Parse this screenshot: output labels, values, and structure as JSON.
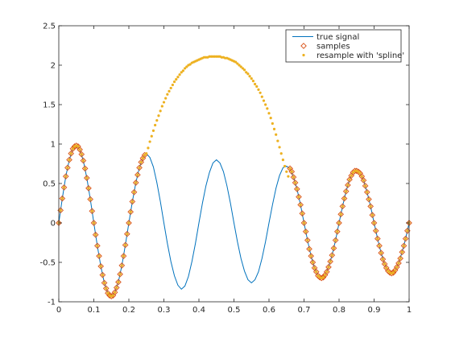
{
  "chart_data": {
    "type": "line",
    "title": "",
    "xlabel": "",
    "ylabel": "",
    "xlim": [
      0,
      1
    ],
    "ylim": [
      -1,
      2.5
    ],
    "grid": false,
    "legend_position": "top-right",
    "x_ticks": [
      "0",
      "0.1",
      "0.2",
      "0.3",
      "0.4",
      "0.5",
      "0.6",
      "0.7",
      "0.8",
      "0.9",
      "1"
    ],
    "y_ticks": [
      "-1",
      "-0.5",
      "0",
      "0.5",
      "1",
      "1.5",
      "2",
      "2.5"
    ],
    "series": [
      {
        "name": "true signal",
        "style": "line",
        "color": "#0072bd",
        "x": [
          0.0,
          0.01,
          0.02,
          0.03,
          0.04,
          0.05,
          0.06,
          0.07,
          0.08,
          0.09,
          0.1,
          0.11,
          0.12,
          0.13,
          0.14,
          0.15,
          0.16,
          0.17,
          0.18,
          0.19,
          0.2,
          0.21,
          0.22,
          0.23,
          0.24,
          0.25,
          0.26,
          0.27,
          0.28,
          0.29,
          0.3,
          0.31,
          0.32,
          0.33,
          0.34,
          0.35,
          0.36,
          0.37,
          0.38,
          0.39,
          0.4,
          0.41,
          0.42,
          0.43,
          0.44,
          0.45,
          0.46,
          0.47,
          0.48,
          0.49,
          0.5,
          0.51,
          0.52,
          0.53,
          0.54,
          0.55,
          0.56,
          0.57,
          0.58,
          0.59,
          0.6,
          0.61,
          0.62,
          0.63,
          0.64,
          0.65,
          0.66,
          0.67,
          0.68,
          0.69,
          0.7,
          0.71,
          0.72,
          0.73,
          0.74,
          0.75,
          0.76,
          0.77,
          0.78,
          0.79,
          0.8,
          0.81,
          0.82,
          0.83,
          0.84,
          0.85,
          0.86,
          0.87,
          0.88,
          0.89,
          0.9,
          0.91,
          0.92,
          0.93,
          0.94,
          0.95,
          0.96,
          0.97,
          0.98,
          0.99,
          1.0
        ],
        "values": [
          0.0,
          0.31,
          0.59,
          0.8,
          0.94,
          0.98,
          0.93,
          0.79,
          0.57,
          0.3,
          0.0,
          -0.29,
          -0.55,
          -0.76,
          -0.89,
          -0.93,
          -0.88,
          -0.75,
          -0.54,
          -0.28,
          0.0,
          0.27,
          0.51,
          0.7,
          0.82,
          0.88,
          0.83,
          0.71,
          0.51,
          0.27,
          0.0,
          -0.26,
          -0.49,
          -0.67,
          -0.79,
          -0.84,
          -0.8,
          -0.68,
          -0.49,
          -0.26,
          0.0,
          0.25,
          0.47,
          0.64,
          0.76,
          0.8,
          0.76,
          0.65,
          0.47,
          0.25,
          0.0,
          -0.24,
          -0.45,
          -0.61,
          -0.72,
          -0.76,
          -0.72,
          -0.62,
          -0.45,
          -0.24,
          0.0,
          0.23,
          0.44,
          0.6,
          0.7,
          0.72,
          0.69,
          0.58,
          0.43,
          0.23,
          0.0,
          -0.22,
          -0.42,
          -0.57,
          -0.67,
          -0.7,
          -0.66,
          -0.56,
          -0.41,
          -0.22,
          0.0,
          0.21,
          0.4,
          0.55,
          0.64,
          0.66,
          0.63,
          0.54,
          0.39,
          0.21,
          0.0,
          -0.2,
          -0.38,
          -0.52,
          -0.61,
          -0.64,
          -0.6,
          -0.51,
          -0.37,
          -0.2,
          0.0
        ]
      },
      {
        "name": "samples",
        "style": "marker-diamond",
        "color": "#d95319",
        "x": [
          0.0,
          0.005,
          0.01,
          0.015,
          0.02,
          0.025,
          0.03,
          0.035,
          0.04,
          0.045,
          0.05,
          0.055,
          0.06,
          0.065,
          0.07,
          0.075,
          0.08,
          0.085,
          0.09,
          0.095,
          0.1,
          0.105,
          0.11,
          0.115,
          0.12,
          0.125,
          0.13,
          0.135,
          0.14,
          0.145,
          0.15,
          0.155,
          0.16,
          0.165,
          0.17,
          0.175,
          0.18,
          0.185,
          0.19,
          0.195,
          0.2,
          0.205,
          0.21,
          0.215,
          0.22,
          0.225,
          0.23,
          0.235,
          0.24,
          0.245,
          0.66,
          0.665,
          0.67,
          0.675,
          0.68,
          0.685,
          0.69,
          0.695,
          0.7,
          0.705,
          0.71,
          0.715,
          0.72,
          0.725,
          0.73,
          0.735,
          0.74,
          0.745,
          0.75,
          0.755,
          0.76,
          0.765,
          0.77,
          0.775,
          0.78,
          0.785,
          0.79,
          0.795,
          0.8,
          0.805,
          0.81,
          0.815,
          0.82,
          0.825,
          0.83,
          0.835,
          0.84,
          0.845,
          0.85,
          0.855,
          0.86,
          0.865,
          0.87,
          0.875,
          0.88,
          0.885,
          0.89,
          0.895,
          0.9,
          0.905,
          0.91,
          0.915,
          0.92,
          0.925,
          0.93,
          0.935,
          0.94,
          0.945,
          0.95,
          0.955,
          0.96,
          0.965,
          0.97,
          0.975,
          0.98,
          0.985,
          0.99,
          0.995,
          1.0
        ],
        "values": [
          0.0,
          0.16,
          0.31,
          0.45,
          0.59,
          0.7,
          0.8,
          0.88,
          0.94,
          0.97,
          0.98,
          0.97,
          0.93,
          0.87,
          0.79,
          0.69,
          0.57,
          0.44,
          0.3,
          0.15,
          0.0,
          -0.15,
          -0.29,
          -0.42,
          -0.55,
          -0.66,
          -0.76,
          -0.83,
          -0.89,
          -0.92,
          -0.93,
          -0.92,
          -0.88,
          -0.82,
          -0.75,
          -0.65,
          -0.54,
          -0.42,
          -0.28,
          -0.14,
          0.0,
          0.14,
          0.27,
          0.39,
          0.51,
          0.61,
          0.7,
          0.77,
          0.82,
          0.86,
          0.69,
          0.65,
          0.58,
          0.51,
          0.43,
          0.33,
          0.23,
          0.12,
          0.0,
          -0.11,
          -0.22,
          -0.33,
          -0.42,
          -0.5,
          -0.57,
          -0.62,
          -0.67,
          -0.69,
          -0.7,
          -0.69,
          -0.66,
          -0.62,
          -0.56,
          -0.49,
          -0.41,
          -0.32,
          -0.22,
          -0.11,
          0.0,
          0.11,
          0.21,
          0.31,
          0.4,
          0.48,
          0.55,
          0.6,
          0.64,
          0.66,
          0.66,
          0.65,
          0.63,
          0.59,
          0.54,
          0.47,
          0.39,
          0.3,
          0.21,
          0.1,
          0.0,
          -0.1,
          -0.2,
          -0.29,
          -0.38,
          -0.46,
          -0.52,
          -0.57,
          -0.61,
          -0.63,
          -0.64,
          -0.63,
          -0.6,
          -0.56,
          -0.51,
          -0.45,
          -0.37,
          -0.29,
          -0.2,
          -0.1,
          0.0
        ]
      },
      {
        "name": "resample with 'spline'",
        "style": "marker-dot",
        "color": "#edb120",
        "x": [
          0.0,
          0.005,
          0.01,
          0.015,
          0.02,
          0.025,
          0.03,
          0.035,
          0.04,
          0.045,
          0.05,
          0.055,
          0.06,
          0.065,
          0.07,
          0.075,
          0.08,
          0.085,
          0.09,
          0.095,
          0.1,
          0.105,
          0.11,
          0.115,
          0.12,
          0.125,
          0.13,
          0.135,
          0.14,
          0.145,
          0.15,
          0.155,
          0.16,
          0.165,
          0.17,
          0.175,
          0.18,
          0.185,
          0.19,
          0.195,
          0.2,
          0.205,
          0.21,
          0.215,
          0.22,
          0.225,
          0.23,
          0.235,
          0.24,
          0.245,
          0.25,
          0.255,
          0.26,
          0.265,
          0.27,
          0.275,
          0.28,
          0.285,
          0.29,
          0.295,
          0.3,
          0.305,
          0.31,
          0.315,
          0.32,
          0.325,
          0.33,
          0.335,
          0.34,
          0.345,
          0.35,
          0.355,
          0.36,
          0.365,
          0.37,
          0.375,
          0.38,
          0.385,
          0.39,
          0.395,
          0.4,
          0.405,
          0.41,
          0.415,
          0.42,
          0.425,
          0.43,
          0.435,
          0.44,
          0.445,
          0.45,
          0.455,
          0.46,
          0.465,
          0.47,
          0.475,
          0.48,
          0.485,
          0.49,
          0.495,
          0.5,
          0.505,
          0.51,
          0.515,
          0.52,
          0.525,
          0.53,
          0.535,
          0.54,
          0.545,
          0.55,
          0.555,
          0.56,
          0.565,
          0.57,
          0.575,
          0.58,
          0.585,
          0.59,
          0.595,
          0.6,
          0.605,
          0.61,
          0.615,
          0.62,
          0.625,
          0.63,
          0.635,
          0.64,
          0.645,
          0.65,
          0.655,
          0.66,
          0.665,
          0.67,
          0.675,
          0.68,
          0.685,
          0.69,
          0.695,
          0.7,
          0.705,
          0.71,
          0.715,
          0.72,
          0.725,
          0.73,
          0.735,
          0.74,
          0.745,
          0.75,
          0.755,
          0.76,
          0.765,
          0.77,
          0.775,
          0.78,
          0.785,
          0.79,
          0.795,
          0.8,
          0.805,
          0.81,
          0.815,
          0.82,
          0.825,
          0.83,
          0.835,
          0.84,
          0.845,
          0.85,
          0.855,
          0.86,
          0.865,
          0.87,
          0.875,
          0.88,
          0.885,
          0.89,
          0.895,
          0.9,
          0.905,
          0.91,
          0.915,
          0.92,
          0.925,
          0.93,
          0.935,
          0.94,
          0.945,
          0.95,
          0.955,
          0.96,
          0.965,
          0.97,
          0.975,
          0.98,
          0.985,
          0.99,
          0.995,
          1.0
        ],
        "values": [
          0.0,
          0.16,
          0.31,
          0.45,
          0.59,
          0.7,
          0.8,
          0.88,
          0.94,
          0.97,
          0.98,
          0.97,
          0.93,
          0.87,
          0.79,
          0.69,
          0.57,
          0.44,
          0.3,
          0.15,
          0.0,
          -0.15,
          -0.29,
          -0.42,
          -0.55,
          -0.66,
          -0.76,
          -0.83,
          -0.89,
          -0.92,
          -0.93,
          -0.92,
          -0.88,
          -0.82,
          -0.75,
          -0.65,
          -0.54,
          -0.42,
          -0.28,
          -0.14,
          0.0,
          0.14,
          0.27,
          0.39,
          0.51,
          0.61,
          0.7,
          0.77,
          0.82,
          0.86,
          0.88,
          0.95,
          1.03,
          1.1,
          1.17,
          1.24,
          1.3,
          1.36,
          1.42,
          1.48,
          1.53,
          1.58,
          1.63,
          1.67,
          1.71,
          1.75,
          1.79,
          1.82,
          1.85,
          1.88,
          1.91,
          1.93,
          1.96,
          1.98,
          2.0,
          2.01,
          2.03,
          2.04,
          2.05,
          2.06,
          2.07,
          2.08,
          2.09,
          2.1,
          2.1,
          2.1,
          2.11,
          2.11,
          2.11,
          2.11,
          2.11,
          2.11,
          2.11,
          2.1,
          2.1,
          2.09,
          2.09,
          2.08,
          2.07,
          2.06,
          2.05,
          2.04,
          2.02,
          2.0,
          1.98,
          1.96,
          1.94,
          1.91,
          1.89,
          1.86,
          1.83,
          1.8,
          1.76,
          1.73,
          1.69,
          1.65,
          1.6,
          1.55,
          1.5,
          1.45,
          1.39,
          1.33,
          1.26,
          1.19,
          1.12,
          1.04,
          0.96,
          0.88,
          0.8,
          0.72,
          0.65,
          0.59,
          0.69,
          0.65,
          0.58,
          0.51,
          0.43,
          0.33,
          0.23,
          0.12,
          0.0,
          -0.11,
          -0.22,
          -0.33,
          -0.42,
          -0.5,
          -0.57,
          -0.62,
          -0.67,
          -0.69,
          -0.7,
          -0.69,
          -0.66,
          -0.62,
          -0.56,
          -0.49,
          -0.41,
          -0.32,
          -0.22,
          -0.11,
          0.0,
          0.11,
          0.21,
          0.31,
          0.4,
          0.48,
          0.55,
          0.6,
          0.64,
          0.66,
          0.66,
          0.65,
          0.63,
          0.59,
          0.54,
          0.47,
          0.39,
          0.3,
          0.21,
          0.1,
          0.0,
          -0.1,
          -0.2,
          -0.29,
          -0.38,
          -0.46,
          -0.52,
          -0.57,
          -0.61,
          -0.63,
          -0.64,
          -0.63,
          -0.6,
          -0.56,
          -0.51,
          -0.45,
          -0.37,
          -0.29,
          -0.2,
          -0.1,
          0.0
        ]
      }
    ]
  }
}
